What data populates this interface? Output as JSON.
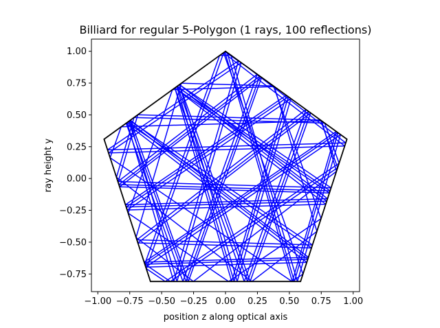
{
  "chart_data": {
    "type": "line",
    "title": "Billiard for regular 5-Polygon (1 rays, 100 reflections)",
    "xlabel": "position z along optical axis",
    "ylabel": "ray height y",
    "xlim": [
      -1.05,
      1.05
    ],
    "ylim": [
      -0.8888,
      1.0954
    ],
    "xticks": [
      -1.0,
      -0.75,
      -0.5,
      -0.25,
      0.0,
      0.25,
      0.5,
      0.75,
      1.0
    ],
    "xtick_labels": [
      "−1.00",
      "−0.75",
      "−0.50",
      "−0.25",
      "0.00",
      "0.25",
      "0.50",
      "0.75",
      "1.00"
    ],
    "yticks": [
      -0.75,
      -0.5,
      -0.25,
      0.0,
      0.25,
      0.5,
      0.75,
      1.0
    ],
    "ytick_labels": [
      "−0.75",
      "−0.50",
      "−0.25",
      "0.00",
      "0.25",
      "0.50",
      "0.75",
      "1.00"
    ],
    "grid": false,
    "legend": "none",
    "aspect": "equal",
    "colors": {
      "polygon": "#000000",
      "ray": "#0000ff"
    },
    "polygon": {
      "sides": 5,
      "vertices": [
        [
          0.0,
          1.0
        ],
        [
          0.9511,
          0.309
        ],
        [
          0.5878,
          -0.809
        ],
        [
          -0.5878,
          -0.809
        ],
        [
          -0.9511,
          0.309
        ]
      ]
    },
    "ray": {
      "rays": 1,
      "reflections": 100,
      "start": [
        0.0,
        0.0
      ],
      "direction_deg": 37.7
    }
  }
}
